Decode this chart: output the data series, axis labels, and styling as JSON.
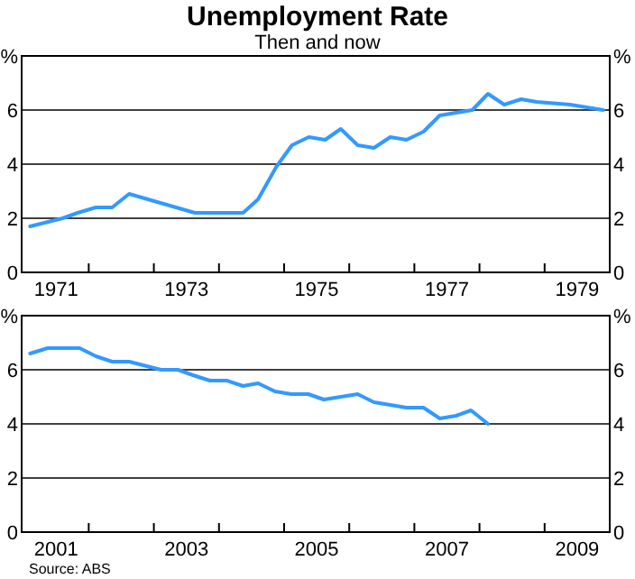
{
  "chart_data": [
    {
      "type": "line",
      "title": "Unemployment Rate",
      "subtitle": "Then and now",
      "x": [
        1971.1,
        1971.6,
        1971.83,
        1972.11,
        1972.36,
        1972.62,
        1973.63,
        1974.37,
        1974.6,
        1974.88,
        1975.12,
        1975.38,
        1975.63,
        1975.87,
        1976.13,
        1976.38,
        1976.63,
        1976.88,
        1977.14,
        1977.39,
        1977.64,
        1977.89,
        1978.13,
        1978.38,
        1978.64,
        1978.88,
        1979.39,
        1979.9
      ],
      "series": [
        {
          "color": "#3399ff",
          "values": [
            1.7,
            2.0,
            2.2,
            2.4,
            2.4,
            2.9,
            2.2,
            2.2,
            2.7,
            3.9,
            4.7,
            5.0,
            4.9,
            5.3,
            4.7,
            4.6,
            5.0,
            4.9,
            5.2,
            5.8,
            5.9,
            6.0,
            6.6,
            6.2,
            6.4,
            6.3,
            6.2,
            6.0
          ]
        }
      ],
      "xlim": [
        1970.97,
        1980
      ],
      "xticks": [
        {
          "value": 1971.5,
          "label": "1971"
        },
        {
          "value": 1972,
          "label": null
        },
        {
          "value": 1973,
          "label": null
        },
        {
          "value": 1973.5,
          "label": "1973"
        },
        {
          "value": 1974,
          "label": null
        },
        {
          "value": 1975,
          "label": null
        },
        {
          "value": 1975.5,
          "label": "1975"
        },
        {
          "value": 1976,
          "label": null
        },
        {
          "value": 1977,
          "label": null
        },
        {
          "value": 1977.5,
          "label": "1977"
        },
        {
          "value": 1978,
          "label": null
        },
        {
          "value": 1979,
          "label": null
        },
        {
          "value": 1979.5,
          "label": "1979"
        }
      ],
      "ylim": [
        0,
        8
      ],
      "yticks": [
        0,
        2,
        4,
        6,
        {
          "value": 8,
          "label": "%"
        }
      ],
      "y2lim": [
        0,
        8
      ],
      "y2ticks": [
        0,
        2,
        4,
        6,
        {
          "value": 8,
          "label": "%"
        }
      ],
      "grid": "y"
    },
    {
      "type": "line",
      "x": [
        2001.1,
        2001.37,
        2001.86,
        2002.11,
        2002.36,
        2002.62,
        2003.11,
        2003.37,
        2003.6,
        2003.86,
        2004.12,
        2004.37,
        2004.6,
        2004.86,
        2005.11,
        2005.37,
        2005.61,
        2005.87,
        2006.13,
        2006.38,
        2006.63,
        2006.88,
        2007.14,
        2007.39,
        2007.64,
        2007.87,
        2008.13
      ],
      "series": [
        {
          "color": "#3399ff",
          "values": [
            6.6,
            6.8,
            6.8,
            6.5,
            6.3,
            6.3,
            6.0,
            6.0,
            5.8,
            5.6,
            5.6,
            5.4,
            5.5,
            5.2,
            5.1,
            5.1,
            4.9,
            5.0,
            5.1,
            4.8,
            4.7,
            4.6,
            4.6,
            4.2,
            4.3,
            4.5,
            4.0
          ]
        }
      ],
      "xlim": [
        2000.97,
        2010
      ],
      "xticks": [
        {
          "value": 2001.5,
          "label": "2001"
        },
        {
          "value": 2002,
          "label": null
        },
        {
          "value": 2003,
          "label": null
        },
        {
          "value": 2003.5,
          "label": "2003"
        },
        {
          "value": 2004,
          "label": null
        },
        {
          "value": 2005,
          "label": null
        },
        {
          "value": 2005.5,
          "label": "2005"
        },
        {
          "value": 2006,
          "label": null
        },
        {
          "value": 2007,
          "label": null
        },
        {
          "value": 2007.5,
          "label": "2007"
        },
        {
          "value": 2008,
          "label": null
        },
        {
          "value": 2009,
          "label": null
        },
        {
          "value": 2009.5,
          "label": "2009"
        }
      ],
      "ylim": [
        0,
        8
      ],
      "yticks": [
        0,
        2,
        4,
        6,
        {
          "value": 8,
          "label": "%"
        }
      ],
      "y2lim": [
        0,
        8
      ],
      "y2ticks": [
        0,
        2,
        4,
        6,
        {
          "value": 8,
          "label": "%"
        }
      ],
      "grid": "y",
      "annotations": [
        "Source: ABS"
      ]
    }
  ]
}
